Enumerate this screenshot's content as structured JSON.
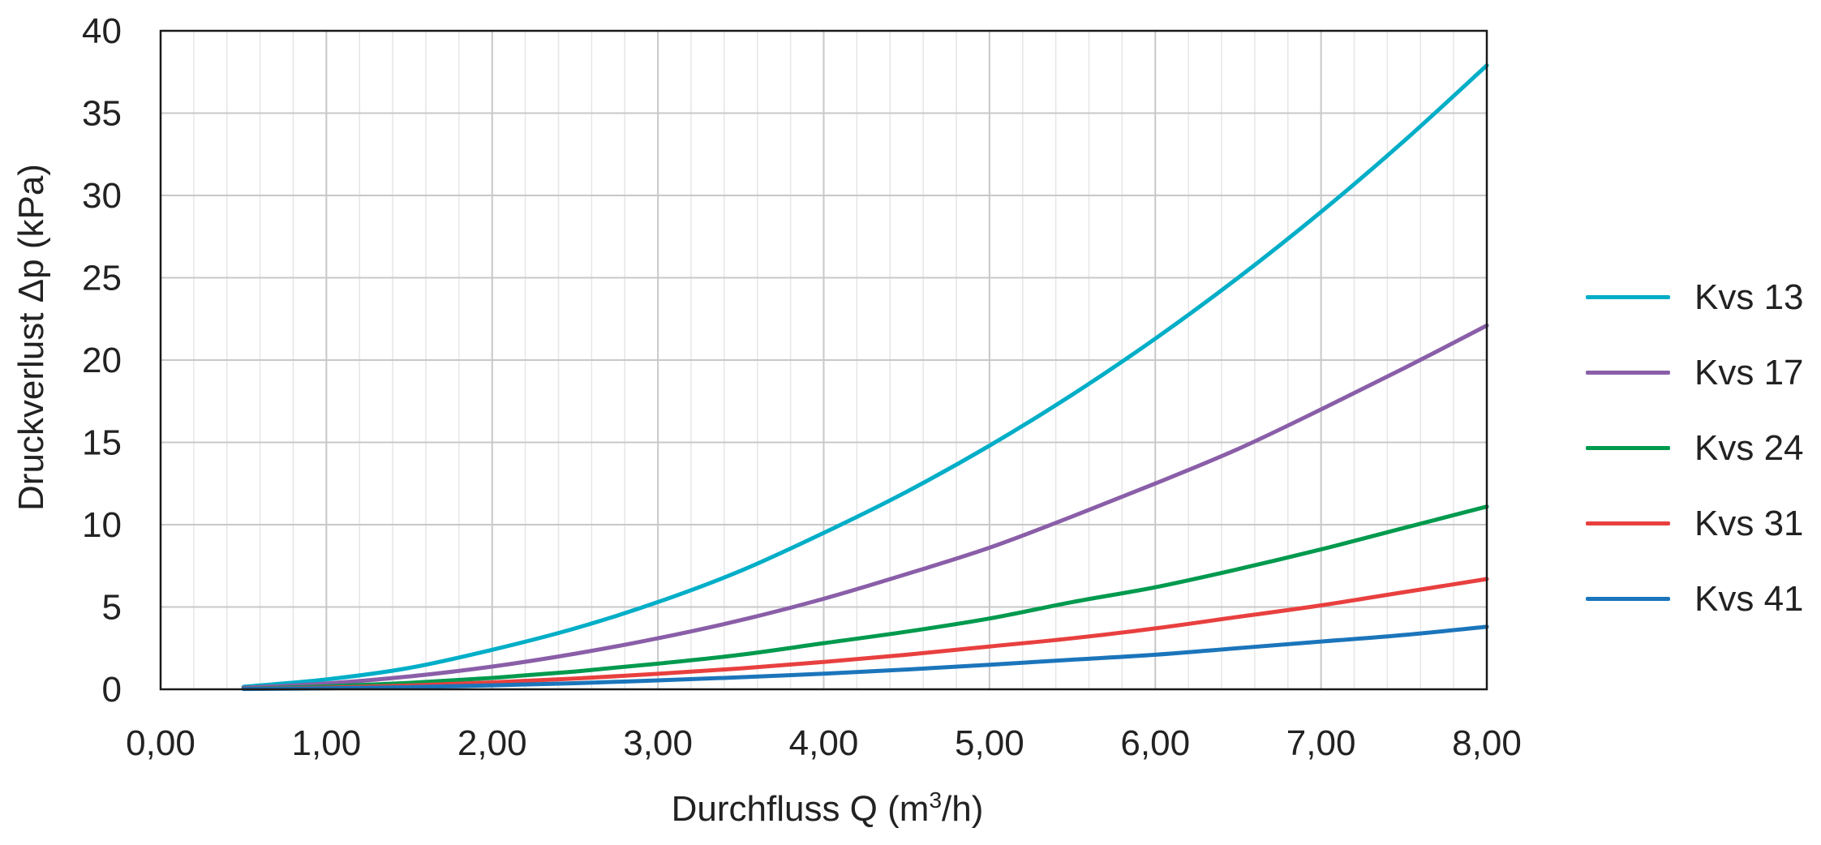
{
  "chart_data": {
    "type": "line",
    "xlabel": "Durchfluss Q (m³/h)",
    "xlabel_prefix": "Durchfluss Q (m",
    "xlabel_sup": "3",
    "xlabel_suffix": "/h)",
    "ylabel": "Druckverlust Δp (kPa)",
    "xlim": [
      0,
      8
    ],
    "ylim": [
      0,
      40
    ],
    "x_ticks": [
      0,
      1,
      2,
      3,
      4,
      5,
      6,
      7,
      8
    ],
    "x_tick_labels": [
      "0,00",
      "1,00",
      "2,00",
      "3,00",
      "4,00",
      "5,00",
      "6,00",
      "7,00",
      "8,00"
    ],
    "y_ticks": [
      0,
      5,
      10,
      15,
      20,
      25,
      30,
      35,
      40
    ],
    "y_tick_labels": [
      "0",
      "5",
      "10",
      "15",
      "20",
      "25",
      "30",
      "35",
      "40"
    ],
    "grid": true,
    "minor_grid_x": 0.2,
    "legend_position": "right",
    "series": [
      {
        "name": "Kvs 13",
        "color": "#00aec7",
        "x": [
          0.5,
          1,
          1.5,
          2,
          2.5,
          3,
          3.5,
          4,
          4.5,
          5,
          5.5,
          6,
          6.5,
          7,
          7.5,
          8
        ],
        "values": [
          0.15,
          0.6,
          1.3,
          2.4,
          3.7,
          5.3,
          7.2,
          9.5,
          12.0,
          14.8,
          17.9,
          21.3,
          25.0,
          29.0,
          33.3,
          37.9
        ]
      },
      {
        "name": "Kvs 17",
        "color": "#8a5ea8",
        "x": [
          0.5,
          1,
          1.5,
          2,
          2.5,
          3,
          3.5,
          4,
          4.5,
          5,
          5.5,
          6,
          6.5,
          7,
          7.5,
          8
        ],
        "values": [
          0.09,
          0.35,
          0.78,
          1.38,
          2.16,
          3.1,
          4.2,
          5.5,
          7.0,
          8.6,
          10.5,
          12.5,
          14.6,
          17.0,
          19.5,
          22.1
        ]
      },
      {
        "name": "Kvs 24",
        "color": "#009a4e",
        "x": [
          0.5,
          1,
          1.5,
          2,
          2.5,
          3,
          3.5,
          4,
          4.5,
          5,
          5.5,
          6,
          6.5,
          7,
          7.5,
          8
        ],
        "values": [
          0.04,
          0.17,
          0.39,
          0.69,
          1.08,
          1.56,
          2.1,
          2.8,
          3.5,
          4.3,
          5.3,
          6.2,
          7.3,
          8.5,
          9.8,
          11.1
        ]
      },
      {
        "name": "Kvs 31",
        "color": "#e8403f",
        "x": [
          0.5,
          1,
          1.5,
          2,
          2.5,
          3,
          3.5,
          4,
          4.5,
          5,
          5.5,
          6,
          6.5,
          7,
          7.5,
          8
        ],
        "values": [
          0.03,
          0.1,
          0.23,
          0.42,
          0.65,
          0.94,
          1.27,
          1.66,
          2.1,
          2.6,
          3.1,
          3.7,
          4.4,
          5.1,
          5.9,
          6.7
        ]
      },
      {
        "name": "Kvs 41",
        "color": "#1b75bb",
        "x": [
          0.5,
          1,
          1.5,
          2,
          2.5,
          3,
          3.5,
          4,
          4.5,
          5,
          5.5,
          6,
          6.5,
          7,
          7.5,
          8
        ],
        "values": [
          0.02,
          0.06,
          0.13,
          0.24,
          0.37,
          0.54,
          0.73,
          0.95,
          1.2,
          1.49,
          1.8,
          2.1,
          2.5,
          2.9,
          3.3,
          3.8
        ]
      }
    ]
  }
}
